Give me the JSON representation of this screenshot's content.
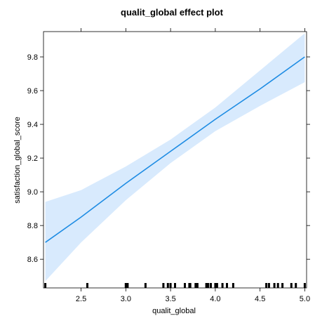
{
  "chart_data": {
    "type": "line",
    "title": "qualit_global effect plot",
    "xlabel": "qualit_global",
    "ylabel": "satisfaction_global_score",
    "xlim": [
      2.08,
      5.02
    ],
    "ylim": [
      8.43,
      9.95
    ],
    "x_ticks": [
      2.5,
      3.0,
      3.5,
      4.0,
      4.5,
      5.0
    ],
    "x_tick_labels": [
      "2.5",
      "3.0",
      "3.5",
      "4.0",
      "4.5",
      "5.0"
    ],
    "y_ticks": [
      8.6,
      8.8,
      9.0,
      9.2,
      9.4,
      9.6,
      9.8
    ],
    "y_tick_labels": [
      "8.6",
      "8.8",
      "9.0",
      "9.2",
      "9.4",
      "9.6",
      "9.8"
    ],
    "series": [
      {
        "x": [
          2.1,
          2.5,
          3.0,
          3.5,
          4.0,
          4.5,
          5.0
        ],
        "fit": [
          8.7,
          8.85,
          9.05,
          9.24,
          9.43,
          9.61,
          9.8
        ],
        "lower": [
          8.47,
          8.7,
          8.95,
          9.17,
          9.36,
          9.51,
          9.65
        ],
        "upper": [
          8.94,
          9.01,
          9.15,
          9.31,
          9.5,
          9.72,
          9.94
        ]
      }
    ],
    "rug": [
      2.1,
      2.57,
      3.0,
      3.02,
      3.22,
      3.42,
      3.47,
      3.5,
      3.55,
      3.66,
      3.71,
      3.72,
      3.78,
      3.8,
      3.9,
      3.92,
      3.95,
      4.0,
      4.02,
      4.08,
      4.13,
      4.2,
      4.57,
      4.6,
      4.66,
      4.7,
      4.75,
      4.85,
      4.9,
      5.0
    ],
    "colors": {
      "line": "#1e8ce3",
      "band": "#d8eafd",
      "rug": "#000000"
    },
    "grid": false,
    "legend": "none"
  }
}
